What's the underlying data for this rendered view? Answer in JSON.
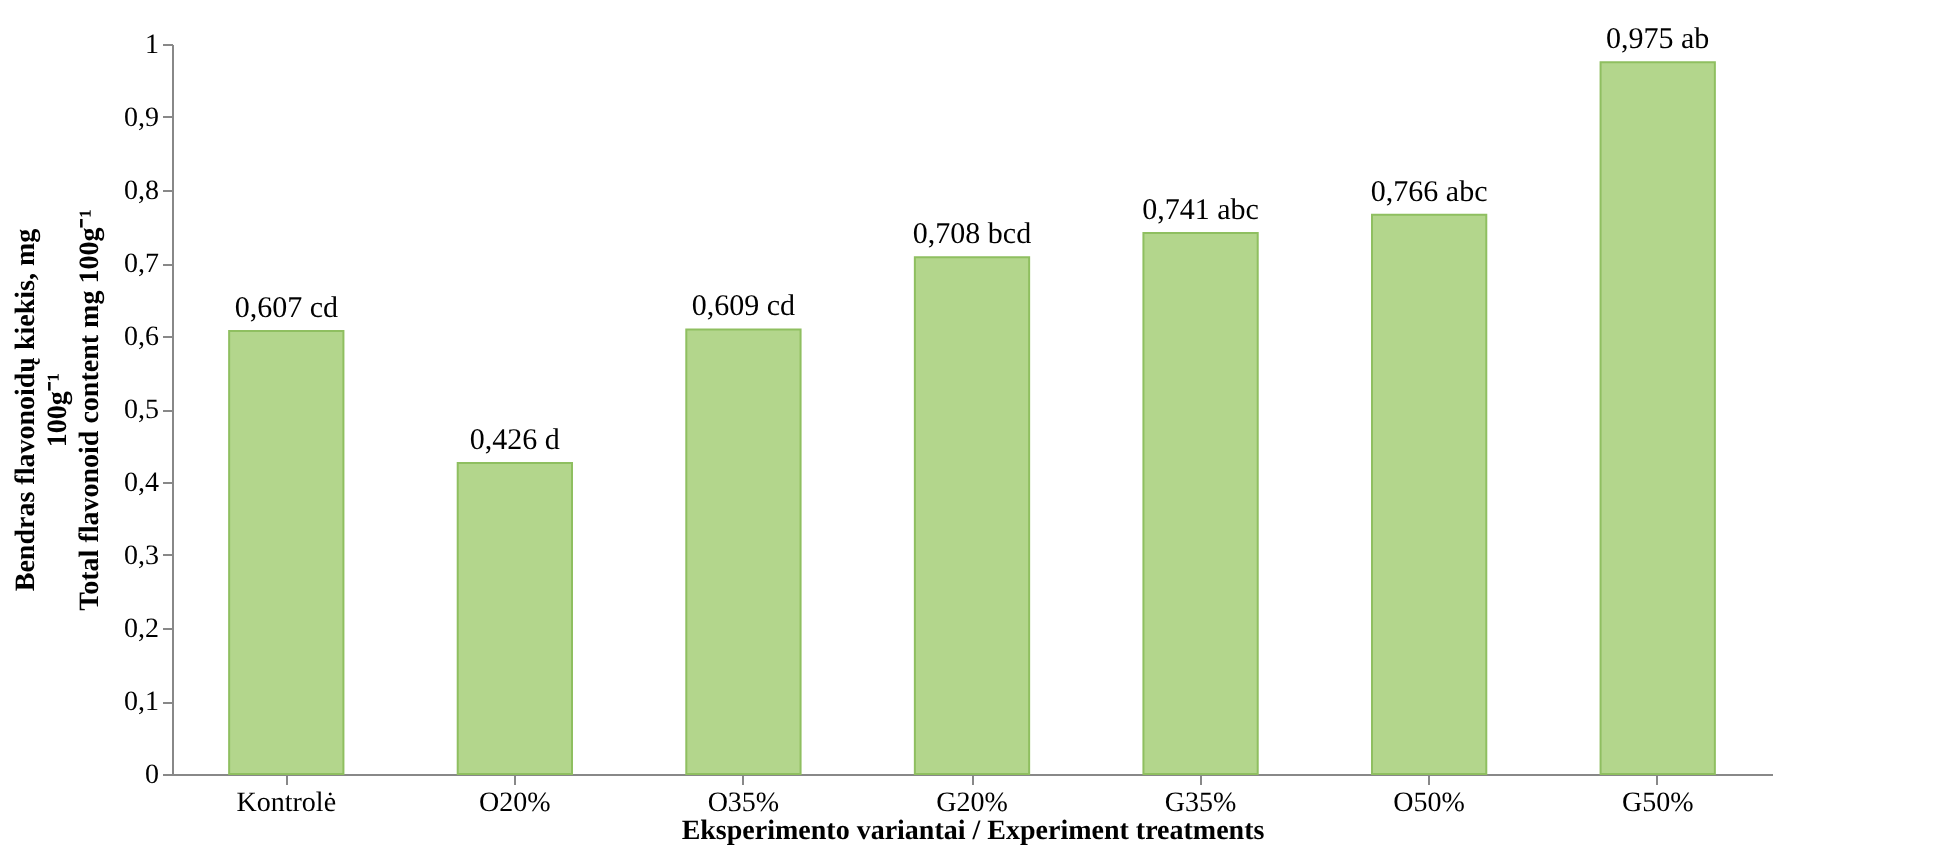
{
  "chart_data": {
    "type": "bar",
    "xlabel": "Eksperimento variantai / Experiment treatments",
    "ylabel": "Bendras flavonoidų kiekis, mg\n100g⁻¹\nTotal flavonoid content mg 100g⁻¹",
    "categories": [
      "Kontrolė",
      "O20%",
      "O35%",
      "G20%",
      "G35%",
      "O50%",
      "G50%"
    ],
    "values": [
      0.607,
      0.426,
      0.609,
      0.708,
      0.741,
      0.766,
      0.975
    ],
    "value_labels": [
      "0,607 cd",
      "0,426 d",
      "0,609 cd",
      "0,708 bcd",
      "0,741 abc",
      "0,766 abc",
      "0,975 ab"
    ],
    "color": "#b3d68c",
    "ylim": [
      0,
      1
    ],
    "yticks": [
      0,
      {
        "value": 0.1,
        "label": "0,1"
      },
      {
        "value": 0.2,
        "label": "0,2"
      },
      {
        "value": 0.3,
        "label": "0,3"
      },
      {
        "value": 0.4,
        "label": "0,4"
      },
      {
        "value": 0.5,
        "label": "0,5"
      },
      {
        "value": 0.6,
        "label": "0,6"
      },
      {
        "value": 0.7,
        "label": "0,7"
      },
      {
        "value": 0.8,
        "label": "0,8"
      },
      {
        "value": 0.9,
        "label": "0,9"
      },
      1
    ],
    "grid": false
  }
}
